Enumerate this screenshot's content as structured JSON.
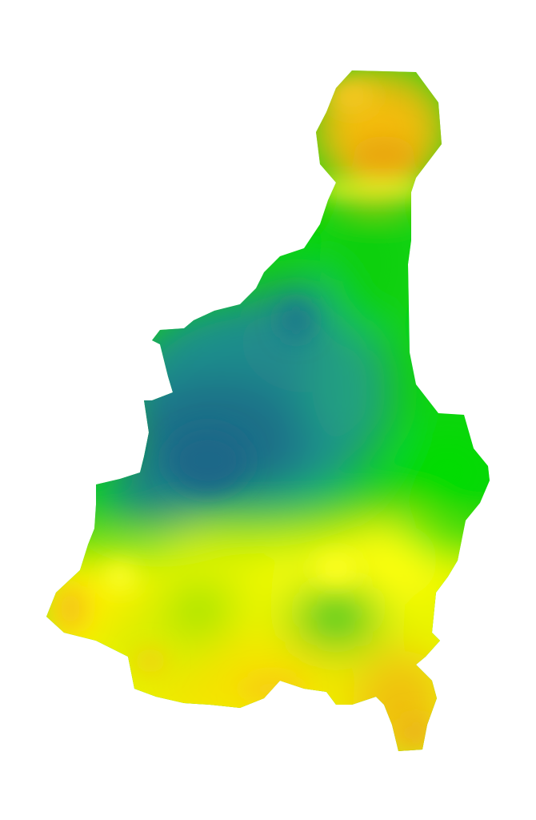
{
  "map": {
    "type": "raster-interpolation-surface",
    "legend": "none",
    "colors": {
      "background": "#ffffff",
      "deep_teal": "#1d6f8a",
      "teal": "#21918c",
      "green": "#0fd10f",
      "bright_green": "#00dd00",
      "yellow_green": "#a8e800",
      "yellow": "#ffff00",
      "orange": "#f5b800",
      "light_orange": "#f7c81a"
    }
  }
}
